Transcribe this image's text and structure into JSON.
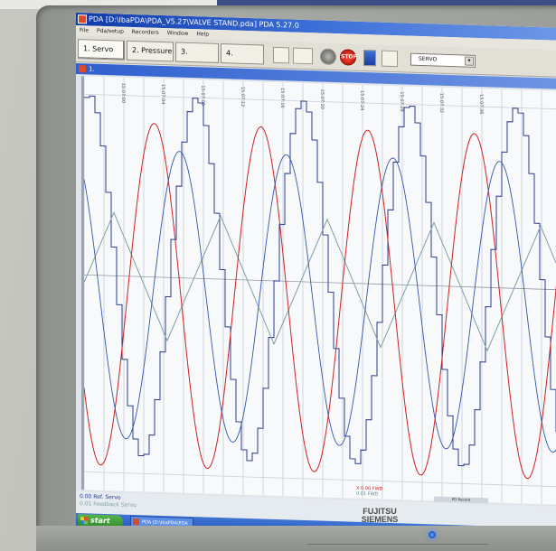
{
  "window": {
    "title": "PDA [D:\\IbaPDA\\PDA_V5.27\\VALVE STAND.pda] PDA 5.27.0"
  },
  "menu": {
    "items": [
      "File",
      "Pda/setup",
      "Recorders",
      "Window",
      "Help"
    ]
  },
  "toolbar": {
    "tabs": [
      {
        "label": "1. Servo"
      },
      {
        "label": "2. Pressure"
      },
      {
        "label": "3."
      },
      {
        "label": "4."
      }
    ],
    "stop_label": "STOP",
    "select_value": "SERVO"
  },
  "subwindow": {
    "title": "1."
  },
  "chart_data": {
    "type": "line",
    "x_tick_labels": [
      "15:07:00",
      "15:07:04",
      "15:07:08",
      "15:07:12",
      "15:07:16",
      "15:07:20",
      "15:07:24",
      "15:07:28",
      "15:07:32",
      "15:07:36"
    ],
    "series": [
      {
        "name": "0.00 Ref. Servo",
        "color": "#2b3a8c",
        "style": "stepped sine"
      },
      {
        "name": "0.01 Feedback Servo",
        "color": "#7f9fa4",
        "style": "triangle"
      },
      {
        "name": "",
        "color": "#cc2222",
        "style": "sine"
      },
      {
        "name": "",
        "color": "#3355aa",
        "style": "sine"
      }
    ],
    "grid": true
  },
  "legend": {
    "ref": "0.00 Ref. Servo",
    "feedback": "0.01 Feedback Servo",
    "marker_r": "X 0.00 FWD",
    "marker_t": "0.01 FWD",
    "tag": "PD Record"
  },
  "taskbar": {
    "start_label": "start",
    "task_item": "PDA [D:\\IbaPDA\\PDA"
  },
  "monitor": {
    "brand": "FUJITSU SIEMENS"
  },
  "colors": {
    "title_blue": "#0f3aa8",
    "taskbar_blue": "#2957b8",
    "start_green": "#3a9a32",
    "signal_red": "#cc2222",
    "signal_blue": "#3355aa",
    "signal_teal": "#7f9fa4"
  }
}
